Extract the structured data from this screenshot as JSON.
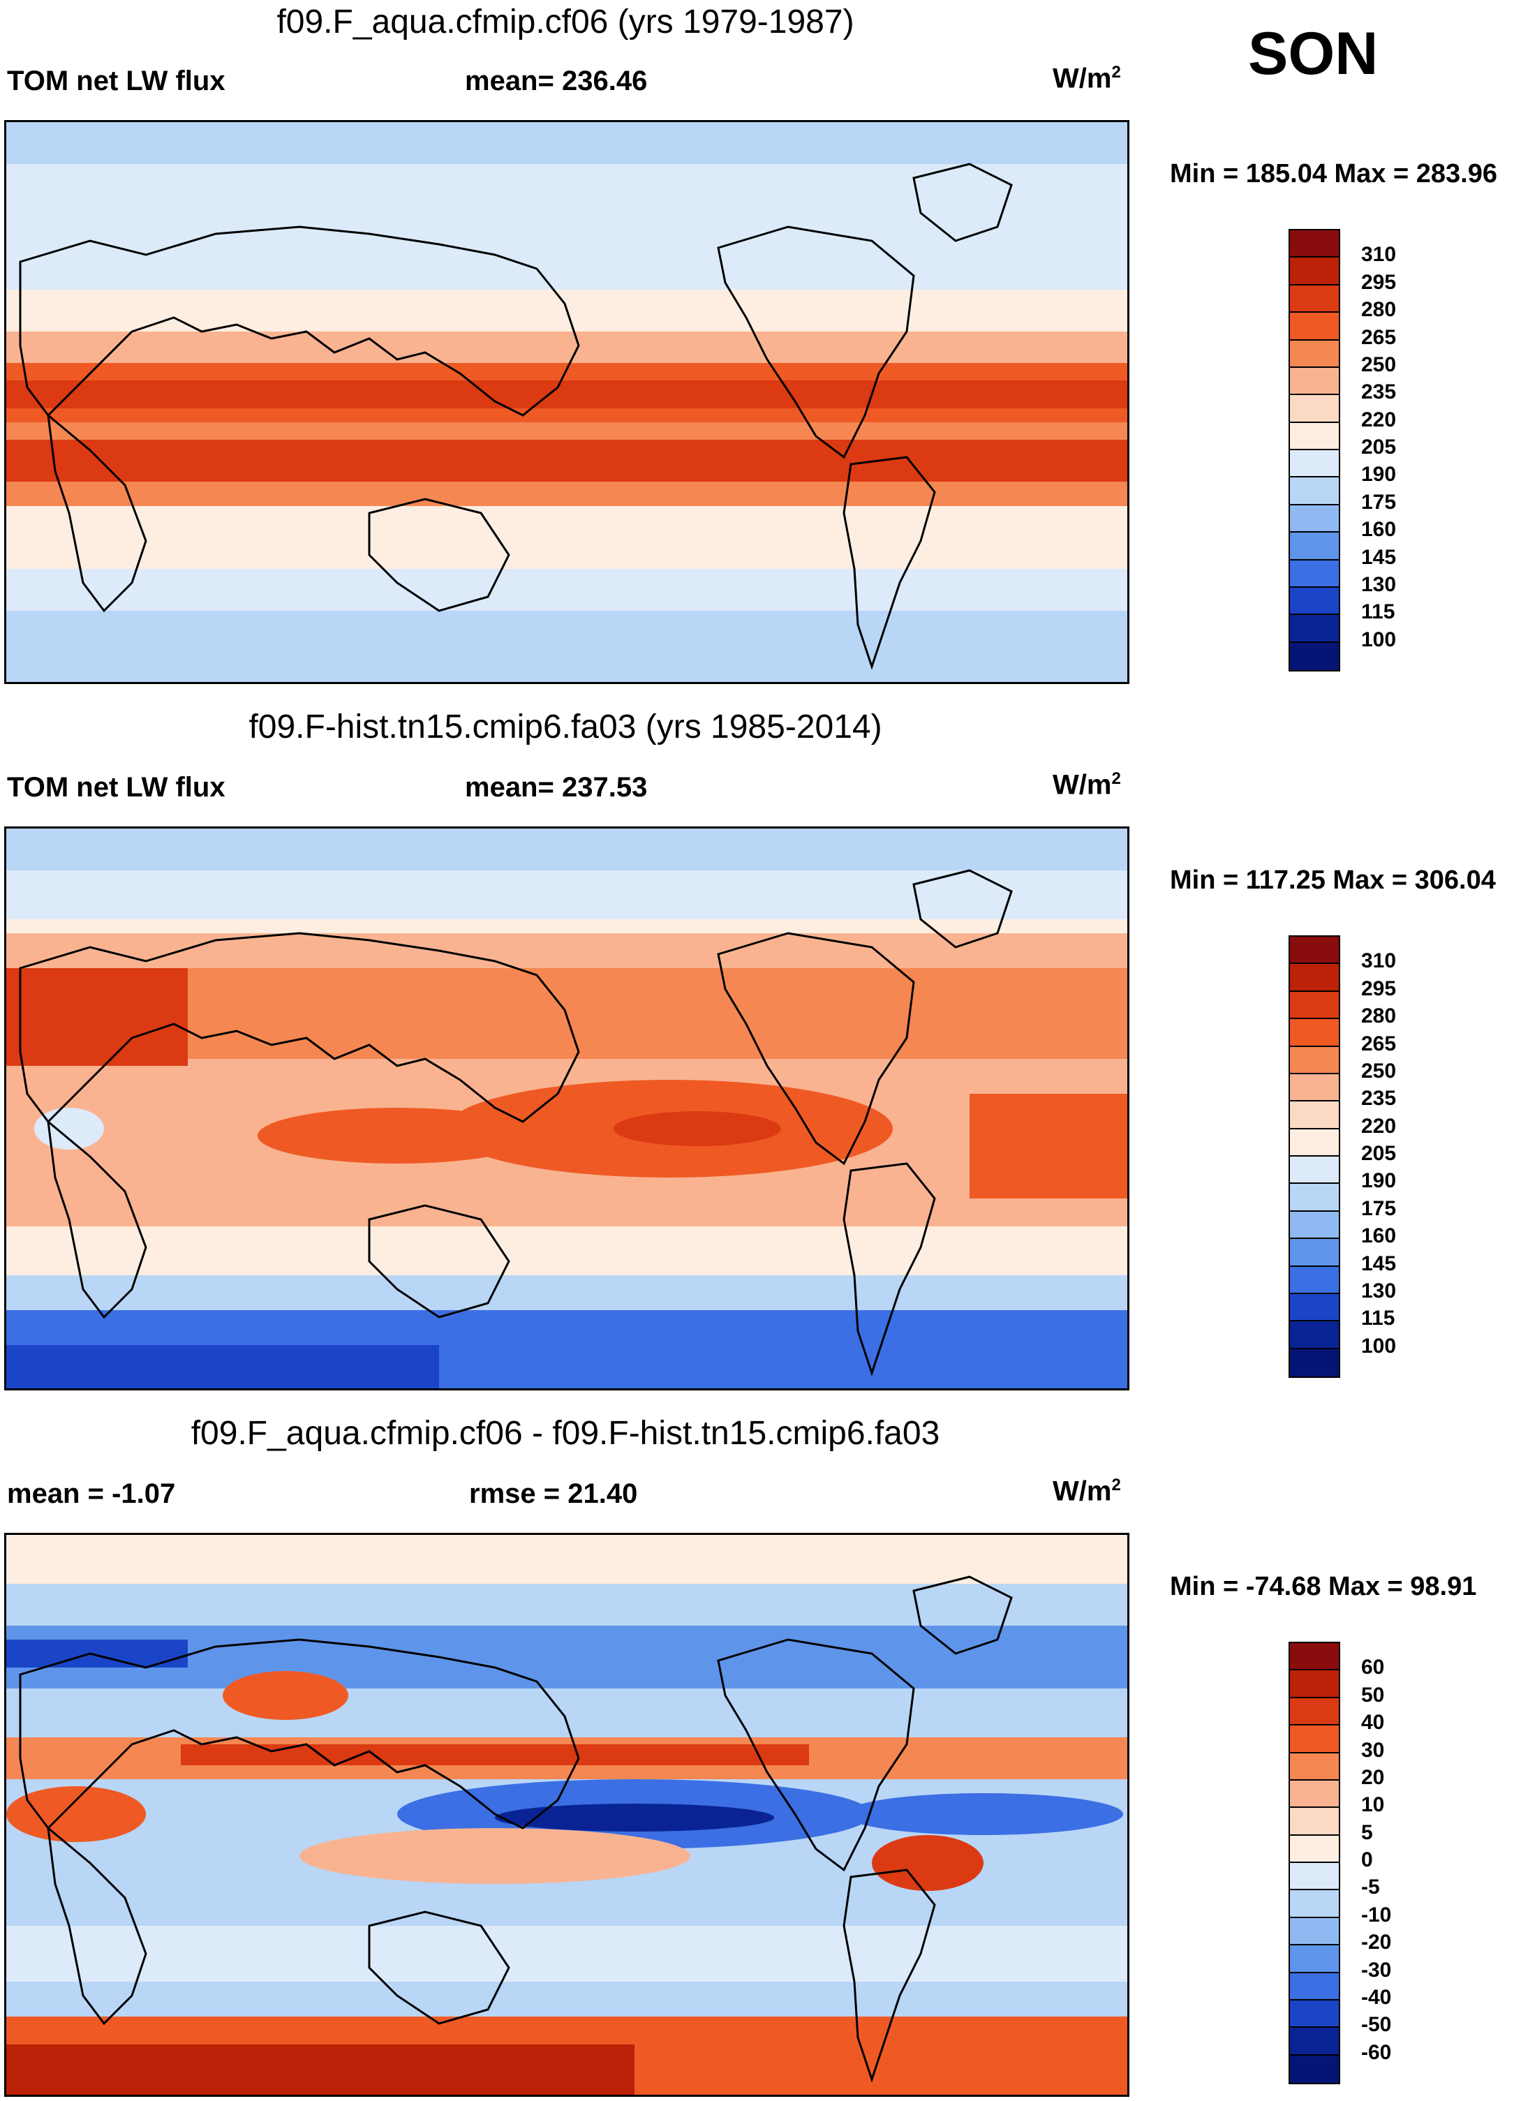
{
  "season": "SON",
  "panels": [
    {
      "title": "f09.F_aqua.cfmip.cf06 (yrs 1979-1987)",
      "left_label": "TOM net LW flux",
      "center_label": "mean= 236.46",
      "units": "W/m",
      "units_sup": "2",
      "minmax": "Min = 185.04 Max = 283.96",
      "colorbar": {
        "labels": [
          "310",
          "295",
          "280",
          "265",
          "250",
          "235",
          "220",
          "205",
          "190",
          "175",
          "160",
          "145",
          "130",
          "115",
          "100"
        ],
        "colors": [
          "#8b0c0c",
          "#bb2207",
          "#db3a12",
          "#ef5a24",
          "#f58752",
          "#f9b391",
          "#fcd9c4",
          "#fdeee1",
          "#dceafa",
          "#b9d6f6",
          "#8fb9f0",
          "#5e95ea",
          "#3b6fe3",
          "#1a45c6",
          "#0a2394",
          "#061575"
        ]
      }
    },
    {
      "title": "f09.F-hist.tn15.cmip6.fa03 (yrs 1985-2014)",
      "left_label": "TOM net LW flux",
      "center_label": "mean= 237.53",
      "units": "W/m",
      "units_sup": "2",
      "minmax": "Min = 117.25 Max = 306.04",
      "colorbar": {
        "labels": [
          "310",
          "295",
          "280",
          "265",
          "250",
          "235",
          "220",
          "205",
          "190",
          "175",
          "160",
          "145",
          "130",
          "115",
          "100"
        ],
        "colors": [
          "#8b0c0c",
          "#bb2207",
          "#db3a12",
          "#ef5a24",
          "#f58752",
          "#f9b391",
          "#fcd9c4",
          "#fdeee1",
          "#dceafa",
          "#b9d6f6",
          "#8fb9f0",
          "#5e95ea",
          "#3b6fe3",
          "#1a45c6",
          "#0a2394",
          "#061575"
        ]
      }
    },
    {
      "title": "f09.F_aqua.cfmip.cf06 - f09.F-hist.tn15.cmip6.fa03",
      "left_label": "mean =  -1.07",
      "center_label": "rmse =  21.40",
      "units": "W/m",
      "units_sup": "2",
      "minmax": "Min = -74.68 Max =  98.91",
      "colorbar": {
        "labels": [
          "60",
          "50",
          "40",
          "30",
          "20",
          "10",
          "5",
          "0",
          "-5",
          "-10",
          "-20",
          "-30",
          "-40",
          "-50",
          "-60"
        ],
        "colors": [
          "#8b0c0c",
          "#bb2207",
          "#db3a12",
          "#ef5a24",
          "#f58752",
          "#f9b391",
          "#fcd9c4",
          "#fdeee1",
          "#dceafa",
          "#b9d6f6",
          "#8fb9f0",
          "#5e95ea",
          "#3b6fe3",
          "#1a45c6",
          "#0a2394",
          "#061575"
        ]
      }
    }
  ]
}
